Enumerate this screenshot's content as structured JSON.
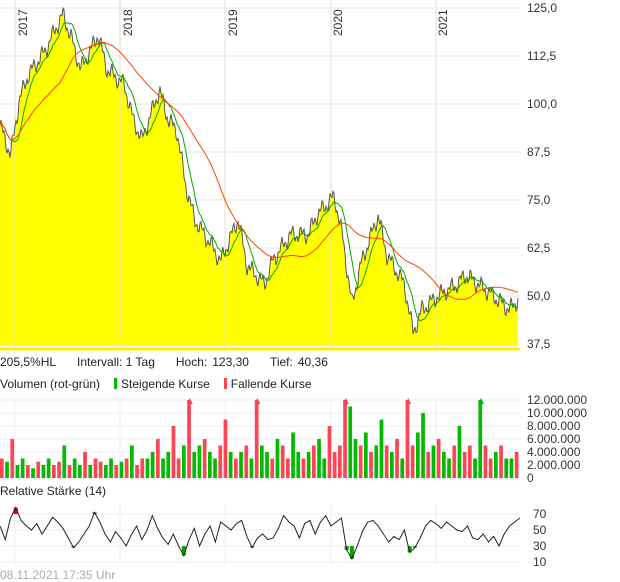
{
  "info": {
    "range": "205,5%HL",
    "interval": "Intervall: 1 Tag",
    "high_label": "Hoch:",
    "high": "123,30",
    "low_label": "Tief:",
    "low": "40,36"
  },
  "volume_legend": {
    "title": "Volumen (rot-grün)",
    "up": "Steigende Kurse",
    "down": "Fallende Kurse"
  },
  "rsi_title": "Relative Stärke (14)",
  "timestamp": "08.11.2021 17:35 Uhr",
  "colors": {
    "area": "#ffff00",
    "price": "#555555",
    "ma_short": "#00aa00",
    "ma_long": "#ff4400",
    "up": "#00bb00",
    "down": "#ff4455",
    "rsi_high": "#ee0000",
    "rsi_low": "#00aa00"
  },
  "chart_data": [
    {
      "type": "area",
      "years": [
        "2017",
        "2018",
        "2019",
        "2020",
        "2021"
      ],
      "y_ticks": [
        "125,0",
        "112,5",
        "100,0",
        "87,5",
        "75,0",
        "62,5",
        "50,0",
        "37,5"
      ],
      "ylim": [
        37.5,
        125
      ],
      "moving_averages": [
        "short",
        "long"
      ],
      "x": [
        "2016-11",
        "2016-12",
        "2017-01",
        "2017-02",
        "2017-04",
        "2017-05",
        "2017-06",
        "2017-07",
        "2017-08",
        "2017-10",
        "2017-11",
        "2018-01",
        "2018-02",
        "2018-03",
        "2018-05",
        "2018-06",
        "2018-07",
        "2018-08",
        "2018-09",
        "2018-11",
        "2018-12",
        "2019-02",
        "2019-03",
        "2019-05",
        "2019-06",
        "2019-08",
        "2019-10",
        "2019-11",
        "2020-01",
        "2020-02",
        "2020-03",
        "2020-04",
        "2020-06",
        "2020-07",
        "2020-09",
        "2020-10",
        "2020-11",
        "2021-01",
        "2021-03",
        "2021-04",
        "2021-07",
        "2021-09",
        "2021-10"
      ],
      "y": [
        94.5,
        86.7,
        101,
        107.5,
        114,
        119,
        123.3,
        116.7,
        109,
        118,
        109,
        105,
        96,
        90.6,
        103.6,
        96,
        93,
        79,
        70,
        63,
        59,
        70,
        58,
        53,
        59.4,
        66,
        66,
        71,
        76,
        64.6,
        47.7,
        58,
        71,
        60.7,
        53,
        40.4,
        46.4,
        50.3,
        53,
        55.5,
        50.3,
        46.4,
        49
      ]
    },
    {
      "type": "bar",
      "title": "Volumen (rot-grün)",
      "y_ticks": [
        "12.000.000",
        "10.000.000",
        "8.000.000",
        "6.000.000",
        "4.000.000",
        "2.000.000",
        "0"
      ],
      "ylim": [
        0,
        12000000
      ],
      "values_millions": [
        3,
        2.5,
        6,
        2,
        3,
        2,
        1.5,
        2.5,
        2,
        3,
        2,
        2.5,
        5,
        2,
        3,
        2,
        4,
        2,
        3,
        2.5,
        2,
        3,
        2,
        2.5,
        3,
        5,
        2,
        3,
        3,
        4,
        6,
        3,
        4,
        8,
        3,
        5,
        13,
        4,
        5,
        6,
        4,
        3,
        5,
        9,
        4,
        3,
        4,
        5,
        3,
        13,
        5,
        4,
        3,
        6,
        5,
        3,
        7,
        4,
        3,
        4,
        5,
        6,
        3,
        8,
        4,
        5,
        13,
        11,
        6,
        5,
        7,
        4,
        5,
        9,
        5,
        4,
        6,
        3,
        13,
        5,
        7,
        10,
        4,
        5,
        6,
        4,
        3,
        5,
        8,
        4,
        5,
        3,
        13,
        5,
        3,
        4,
        5,
        3,
        3,
        4
      ],
      "rising": [
        0,
        1,
        0,
        1,
        1,
        0,
        1,
        0,
        1,
        1,
        0,
        0,
        1,
        0,
        1,
        1,
        0,
        1,
        0,
        0,
        1,
        1,
        0,
        1,
        0,
        1,
        0,
        0,
        1,
        1,
        0,
        1,
        1,
        0,
        0,
        1,
        0,
        1,
        1,
        0,
        1,
        1,
        0,
        0,
        1,
        0,
        1,
        0,
        1,
        0,
        1,
        1,
        0,
        1,
        0,
        0,
        1,
        1,
        0,
        1,
        0,
        1,
        1,
        0,
        0,
        0,
        0,
        1,
        1,
        0,
        1,
        0,
        1,
        1,
        0,
        1,
        0,
        1,
        0,
        0,
        1,
        1,
        0,
        1,
        0,
        1,
        1,
        0,
        1,
        0,
        0,
        1,
        1,
        0,
        0,
        1,
        0,
        1,
        1,
        0
      ]
    },
    {
      "type": "line",
      "title": "Relative Stärke (14)",
      "y_ticks": [
        "70",
        "50",
        "30",
        "10"
      ],
      "ylim": [
        10,
        80
      ],
      "values": [
        55,
        38,
        65,
        78,
        62,
        55,
        50,
        58,
        45,
        55,
        66,
        60,
        52,
        40,
        28,
        35,
        45,
        55,
        72,
        60,
        45,
        35,
        48,
        40,
        30,
        44,
        55,
        38,
        50,
        68,
        52,
        40,
        32,
        45,
        30,
        18,
        38,
        52,
        30,
        45,
        55,
        35,
        60,
        55,
        50,
        58,
        62,
        42,
        28,
        40,
        45,
        38,
        40,
        52,
        68,
        60,
        55,
        40,
        58,
        62,
        45,
        60,
        68,
        55,
        60,
        65,
        25,
        14,
        30,
        48,
        60,
        62,
        55,
        45,
        35,
        42,
        38,
        50,
        22,
        28,
        40,
        55,
        62,
        58,
        52,
        60,
        55,
        50,
        48,
        55,
        40,
        38,
        45,
        35,
        42,
        30,
        45,
        55,
        60,
        65
      ]
    }
  ]
}
